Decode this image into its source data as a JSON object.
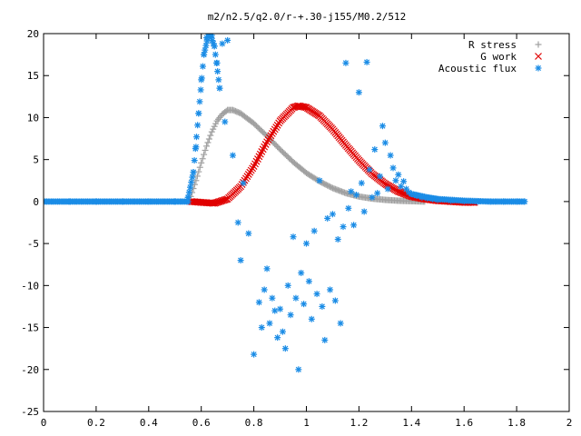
{
  "chart_data": {
    "type": "scatter",
    "title": "m2/n2.5/q2.0/r-+.30-j155/M0.2/512",
    "xlabel": "",
    "ylabel": "",
    "xlim": [
      0,
      2
    ],
    "ylim": [
      -25,
      20
    ],
    "grid": false,
    "legend_position": "top-right",
    "x_ticks": [
      "0",
      "0.2",
      "0.4",
      "0.6",
      "0.8",
      "1",
      "1.2",
      "1.4",
      "1.6",
      "1.8",
      "2"
    ],
    "y_ticks": [
      "-25",
      "-20",
      "-15",
      "-10",
      "-5",
      "0",
      "5",
      "10",
      "15",
      "20"
    ],
    "series": [
      {
        "name": "R stress",
        "marker": "plus",
        "color": "#a0a0a0",
        "peak_x": 0.71,
        "peak_y": 10.9,
        "rise_start": 0.555,
        "tail_end": 1.46,
        "x": [
          0.56,
          0.58,
          0.6,
          0.62,
          0.64,
          0.66,
          0.68,
          0.7,
          0.72,
          0.75,
          0.8,
          0.85,
          0.9,
          0.95,
          1.0,
          1.05,
          1.1,
          1.15,
          1.2,
          1.25,
          1.3,
          1.35,
          1.4,
          1.45
        ],
        "y": [
          0.6,
          2.5,
          4.6,
          6.6,
          8.3,
          9.6,
          10.4,
          10.9,
          10.9,
          10.5,
          9.3,
          7.8,
          6.2,
          4.7,
          3.4,
          2.4,
          1.6,
          1.0,
          0.6,
          0.35,
          0.2,
          0.1,
          0.05,
          0.0
        ]
      },
      {
        "name": "G work",
        "marker": "cross",
        "color": "#e00000",
        "peak_x": 0.97,
        "peak_y": 11.4,
        "start_x": 0.555,
        "end_x": 1.64,
        "x": [
          0.56,
          0.6,
          0.65,
          0.7,
          0.75,
          0.8,
          0.85,
          0.9,
          0.95,
          0.97,
          1.0,
          1.05,
          1.1,
          1.15,
          1.2,
          1.25,
          1.3,
          1.35,
          1.4,
          1.45,
          1.5,
          1.55,
          1.6,
          1.64
        ],
        "y": [
          0.0,
          -0.1,
          -0.2,
          0.3,
          1.8,
          4.2,
          7.1,
          9.6,
          11.2,
          11.4,
          11.2,
          10.2,
          8.6,
          6.7,
          4.9,
          3.3,
          2.1,
          1.2,
          0.6,
          0.3,
          0.1,
          0.0,
          -0.1,
          -0.1
        ]
      },
      {
        "name": "Acoustic flux",
        "marker": "star",
        "color": "#1a8ce6",
        "x": [
          0.0,
          0.1,
          0.2,
          0.3,
          0.4,
          0.5,
          0.55,
          0.57,
          0.58,
          0.59,
          0.6,
          0.61,
          0.62,
          0.63,
          0.64,
          0.65,
          0.66,
          0.67,
          0.68,
          0.69,
          0.7,
          0.72,
          0.74,
          0.75,
          0.76,
          0.78,
          0.8,
          0.82,
          0.83,
          0.84,
          0.85,
          0.86,
          0.87,
          0.88,
          0.89,
          0.9,
          0.91,
          0.92,
          0.93,
          0.94,
          0.95,
          0.96,
          0.97,
          0.98,
          0.99,
          1.0,
          1.01,
          1.02,
          1.03,
          1.04,
          1.05,
          1.06,
          1.07,
          1.08,
          1.09,
          1.1,
          1.11,
          1.12,
          1.13,
          1.14,
          1.15,
          1.16,
          1.17,
          1.18,
          1.19,
          1.2,
          1.21,
          1.22,
          1.23,
          1.24,
          1.25,
          1.26,
          1.27,
          1.28,
          1.29,
          1.3,
          1.31,
          1.32,
          1.33,
          1.34,
          1.35,
          1.36,
          1.37,
          1.38,
          1.39,
          1.4,
          1.42,
          1.44,
          1.46,
          1.48,
          1.5,
          1.55,
          1.6,
          1.65,
          1.7,
          1.75,
          1.8,
          1.83
        ],
        "y": [
          0,
          0,
          0,
          0,
          0,
          0,
          0.5,
          3.5,
          6.5,
          10.5,
          14.5,
          17.5,
          19.5,
          20.2,
          19.8,
          18.5,
          16.5,
          13.5,
          18.8,
          9.5,
          19.2,
          5.5,
          -2.5,
          -7.0,
          2.2,
          -3.8,
          -18.2,
          -12.0,
          -15.0,
          -10.5,
          -8.0,
          -14.5,
          -11.5,
          -13.0,
          -16.2,
          -12.8,
          -15.5,
          -17.5,
          -10.0,
          -13.5,
          -4.2,
          -11.5,
          -20.0,
          -8.5,
          -12.2,
          -5.0,
          -9.5,
          -14.0,
          -3.5,
          -11.0,
          2.5,
          -12.5,
          -16.5,
          -2.0,
          -10.5,
          -1.5,
          -11.8,
          -4.5,
          -14.5,
          -3.0,
          16.5,
          -0.8,
          1.2,
          -2.8,
          0.8,
          13.0,
          2.2,
          -1.2,
          16.6,
          3.8,
          0.5,
          6.2,
          1.0,
          3.0,
          9.0,
          7.0,
          1.5,
          5.5,
          4.0,
          2.5,
          3.2,
          1.8,
          2.4,
          1.5,
          1.1,
          0.9,
          0.7,
          0.5,
          0.4,
          0.3,
          0.2,
          0.1,
          0.05,
          0,
          0,
          0,
          0,
          0
        ]
      }
    ]
  }
}
